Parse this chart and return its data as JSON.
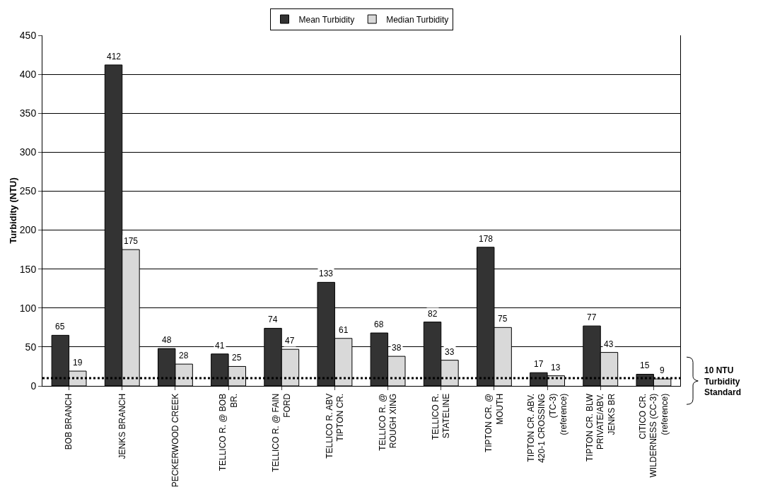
{
  "chart_data": {
    "type": "bar",
    "ylabel": "Turbidity (NTU)",
    "categories": [
      "BOB BRANCH",
      "JENKS BRANCH",
      "PECKERWOOD CREEK",
      "TELLICO R. @ BOB BR.",
      "TELLICO R. @ FAIN FORD",
      "TELLICO R. ABV TIPTON CR.",
      "TELLICO R. @ ROUGH XING",
      "TELLICO R. STATELINE",
      "TIPTON CR. @ MOUTH",
      "TIPTON CR. ABV. 420-1 CROSSING (TC-3) (reference)",
      "TIPTON CR. BLW PRIVATE/ABV. JENKS BR",
      "CITICO CR. WILDERNESS (CC-3) (reference)"
    ],
    "series": [
      {
        "name": "Mean Turbidity",
        "color": "#333333",
        "values": [
          65,
          412,
          48,
          41,
          74,
          133,
          68,
          82,
          178,
          17,
          77,
          15
        ]
      },
      {
        "name": "Median Turbidity",
        "color": "#d9d9d9",
        "values": [
          19,
          175,
          28,
          25,
          47,
          61,
          38,
          33,
          75,
          13,
          43,
          9
        ]
      }
    ],
    "ylim": [
      0,
      450
    ],
    "yticks": [
      0,
      50,
      100,
      150,
      200,
      250,
      300,
      350,
      400,
      450
    ],
    "grid": "y",
    "legend": "top",
    "data_labels": true,
    "ref_lines": [
      {
        "axis": "y",
        "value": 10,
        "label": "10 NTU Turbidity Standard",
        "color": "#000000",
        "line_style": "dotted"
      }
    ]
  }
}
